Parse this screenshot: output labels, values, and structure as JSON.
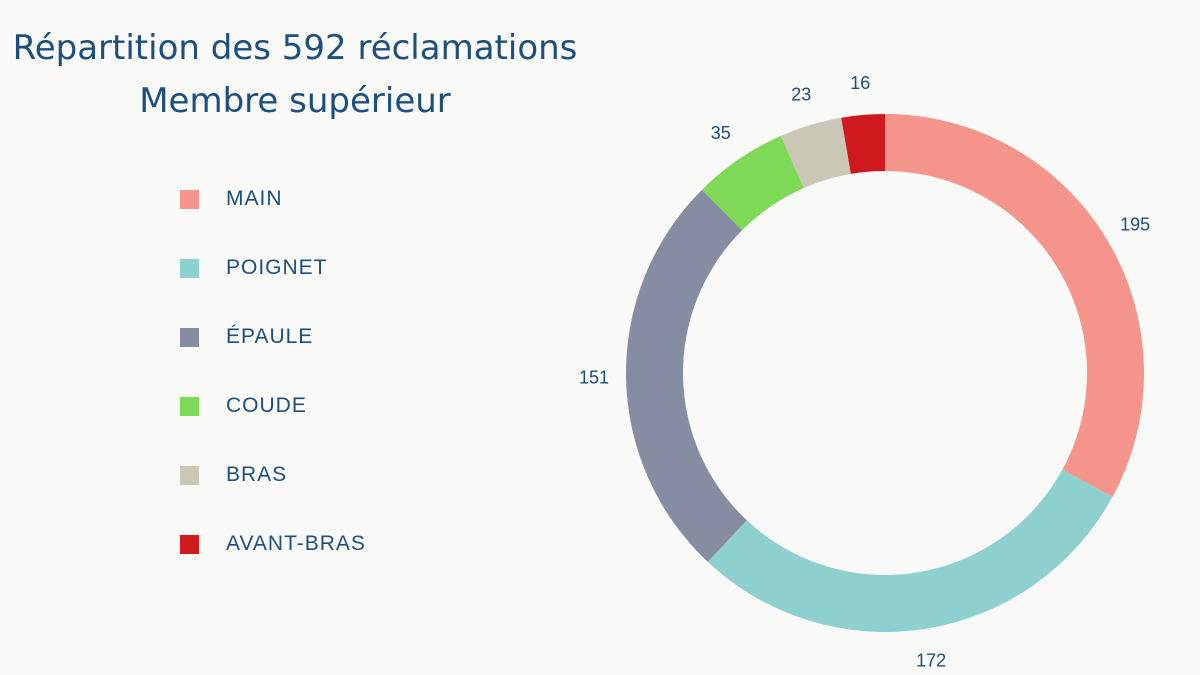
{
  "chart_data": {
    "type": "pie",
    "variant": "donut",
    "title": "Répartition des 592 réclamations",
    "subtitle": "Membre supérieur",
    "legend_placement": "left",
    "slices": [
      {
        "name": "MAIN",
        "value": 195,
        "label": "195",
        "color": "#f4948a"
      },
      {
        "name": "POIGNET",
        "value": 172,
        "label": "172",
        "color": "#8ecfcf"
      },
      {
        "name": "ÉPAULE",
        "value": 151,
        "label": "151",
        "color": "#868da2"
      },
      {
        "name": "COUDE",
        "value": 35,
        "label": "35",
        "color": "#7ed957"
      },
      {
        "name": "BRAS",
        "value": 23,
        "label": "23",
        "color": "#cac7b7"
      },
      {
        "name": "AVANT-BRAS",
        "value": 16,
        "label": "16",
        "color": "#d0191d"
      }
    ]
  }
}
